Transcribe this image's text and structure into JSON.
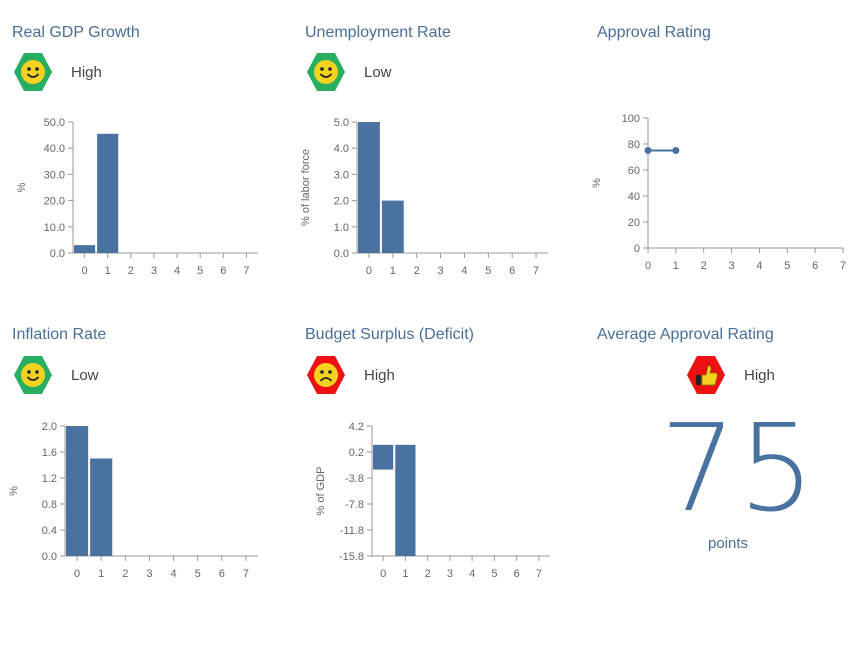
{
  "panels": [
    {
      "title": "Real GDP Growth",
      "status": "High",
      "icon": "happy-face-icon"
    },
    {
      "title": "Unemployment Rate",
      "status": "Low",
      "icon": "happy-face-icon"
    },
    {
      "title": "Approval Rating",
      "status": "",
      "icon": ""
    },
    {
      "title": "Inflation Rate",
      "status": "Low",
      "icon": "happy-face-icon"
    },
    {
      "title": "Budget Surplus (Deficit)",
      "status": "High",
      "icon": "sad-face-icon"
    },
    {
      "title": "Average Approval Rating",
      "status": "High",
      "icon": "thumbs-up-icon"
    }
  ],
  "summary": {
    "value": "75",
    "unit": "points"
  },
  "colors": {
    "bar": "#4a72a0",
    "good": "#27ae60",
    "bad": "#ee1111",
    "face": "#f4d21f",
    "title": "#4a6f96"
  },
  "chart_data": [
    {
      "type": "bar",
      "x": [
        0,
        1,
        2,
        3,
        4,
        5,
        6,
        7
      ],
      "values": [
        3,
        45.5,
        null,
        null,
        null,
        null,
        null,
        null
      ],
      "ylabel": "%",
      "yticks": [
        "0.0",
        "10.0",
        "20.0",
        "30.0",
        "40.0",
        "50.0"
      ],
      "ylim": [
        0,
        50
      ]
    },
    {
      "type": "bar",
      "x": [
        0,
        1,
        2,
        3,
        4,
        5,
        6,
        7
      ],
      "values": [
        5,
        2,
        null,
        null,
        null,
        null,
        null,
        null
      ],
      "ylabel": "% of labor force",
      "yticks": [
        "0.0",
        "1.0",
        "2.0",
        "3.0",
        "4.0",
        "5.0"
      ],
      "ylim": [
        0,
        5
      ]
    },
    {
      "type": "line",
      "x": [
        0,
        1
      ],
      "values": [
        75,
        75
      ],
      "ylabel": "%",
      "yticks": [
        "0",
        "20",
        "40",
        "60",
        "80",
        "100"
      ],
      "ylim": [
        0,
        100
      ],
      "xlim": [
        0,
        7
      ]
    },
    {
      "type": "bar",
      "x": [
        0,
        1,
        2,
        3,
        4,
        5,
        6,
        7
      ],
      "values": [
        2,
        1.5,
        null,
        null,
        null,
        null,
        null,
        null
      ],
      "ylabel": "%",
      "yticks": [
        "0.0",
        "0.4",
        "0.8",
        "1.2",
        "1.6",
        "2.0"
      ],
      "ylim": [
        0,
        2
      ]
    },
    {
      "type": "bar",
      "x": [
        0,
        1,
        2,
        3,
        4,
        5,
        6,
        7
      ],
      "values": [
        -2.5,
        -15.8,
        null,
        null,
        null,
        null,
        null,
        null
      ],
      "ylabel": "% of GDP",
      "yticks": [
        "-15.8",
        "-11.8",
        "-7.8",
        "-3.8",
        "0.2",
        "4.2"
      ],
      "ylim": [
        -15.8,
        4.2
      ],
      "baseline": 1.3
    }
  ]
}
